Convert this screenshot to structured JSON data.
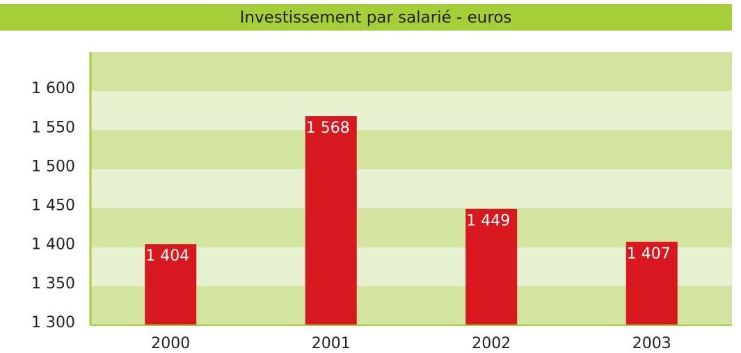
{
  "chart_data": {
    "type": "bar",
    "title": "Investissement par salarié - euros",
    "categories": [
      "2000",
      "2001",
      "2002",
      "2003"
    ],
    "values": [
      1404,
      1568,
      1449,
      1407
    ],
    "value_labels": [
      "1 404",
      "1 568",
      "1 449",
      "1 407"
    ],
    "color": "#d7191f",
    "ylim": [
      1300,
      1650
    ],
    "yticks": [
      {
        "value": 1300,
        "label": "1 300"
      },
      {
        "value": 1350,
        "label": "1 350"
      },
      {
        "value": 1400,
        "label": "1 400"
      },
      {
        "value": 1450,
        "label": "1 450"
      },
      {
        "value": 1500,
        "label": "1 500"
      },
      {
        "value": 1550,
        "label": "1 550"
      },
      {
        "value": 1600,
        "label": "1 600"
      }
    ],
    "grid": true
  }
}
